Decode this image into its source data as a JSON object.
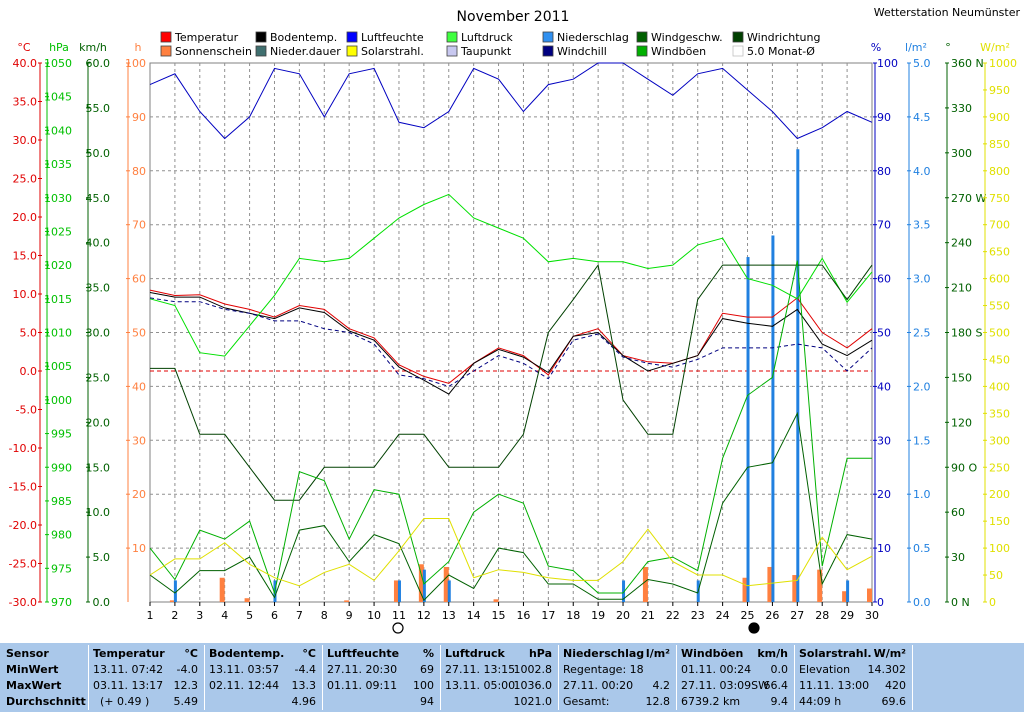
{
  "title": "November 2011",
  "station": "Wetterstation Neumünster",
  "chart_data": {
    "type": "line",
    "x": [
      1,
      2,
      3,
      4,
      5,
      6,
      7,
      8,
      9,
      10,
      11,
      12,
      13,
      14,
      15,
      16,
      17,
      18,
      19,
      20,
      21,
      22,
      23,
      24,
      25,
      26,
      27,
      28,
      29,
      30
    ],
    "xlabel": "",
    "grid": true,
    "axes": [
      {
        "id": "temp",
        "unit": "°C",
        "color": "#e00000",
        "range": [
          -30,
          40
        ],
        "ticks": [
          "40.0",
          "35.0",
          "30.0",
          "25.0",
          "20.0",
          "15.0",
          "10.0",
          "5.0",
          "0.0",
          "-5.0",
          "-10.0",
          "-15.0",
          "-20.0",
          "-25.0",
          "-30.0"
        ]
      },
      {
        "id": "pres",
        "unit": "hPa",
        "color": "#00c000",
        "range": [
          970,
          1050
        ],
        "ticks": [
          "1050",
          "1045",
          "1040",
          "1035",
          "1030",
          "1025",
          "1020",
          "1015",
          "1010",
          "1005",
          "1000",
          "995",
          "990",
          "985",
          "980",
          "975",
          "970"
        ]
      },
      {
        "id": "wind",
        "unit": "km/h",
        "color": "#006000",
        "range": [
          0,
          60
        ],
        "ticks": [
          "60.0",
          "55.0",
          "50.0",
          "45.0",
          "40.0",
          "35.0",
          "30.0",
          "25.0",
          "20.0",
          "15.0",
          "10.0",
          "5.0",
          "0.0"
        ]
      },
      {
        "id": "sun",
        "unit": "h",
        "color": "#ff8040",
        "range": [
          0,
          100
        ],
        "ticks": [
          "100",
          "90",
          "80",
          "70",
          "60",
          "50",
          "40",
          "30",
          "20",
          "10"
        ]
      },
      {
        "id": "hum",
        "unit": "%",
        "color": "#0000c0",
        "range": [
          0,
          100
        ],
        "ticks": [
          "100",
          "90",
          "80",
          "70",
          "60",
          "50",
          "40",
          "30",
          "20",
          "10",
          "0"
        ]
      },
      {
        "id": "rain",
        "unit": "l/m²",
        "color": "#2080e0",
        "range": [
          0,
          5
        ],
        "ticks": [
          "5.0",
          "4.5",
          "4.0",
          "3.5",
          "3.0",
          "2.5",
          "2.0",
          "1.5",
          "1.0",
          "0.5",
          "0.0"
        ]
      },
      {
        "id": "dir",
        "unit": "°",
        "color": "#006000",
        "range": [
          0,
          360
        ],
        "ticks": [
          "360 N",
          "330",
          "300",
          "270 W",
          "240",
          "210",
          "180 S",
          "150",
          "120",
          "90 O",
          "60",
          "30",
          "0 N"
        ]
      },
      {
        "id": "solar",
        "unit": "W/m²",
        "color": "#e0e000",
        "range": [
          0,
          1000
        ],
        "ticks": [
          "1000",
          "950",
          "900",
          "850",
          "800",
          "750",
          "700",
          "650",
          "600",
          "550",
          "500",
          "450",
          "400",
          "350",
          "300",
          "250",
          "200",
          "150",
          "100",
          "50",
          "0"
        ]
      }
    ],
    "legend": [
      {
        "label": "Temperatur",
        "color": "#ff0000"
      },
      {
        "label": "Bodentemp.",
        "color": "#000000"
      },
      {
        "label": "Luftfeuchte",
        "color": "#0000ff"
      },
      {
        "label": "Luftdruck",
        "color": "#40ff40"
      },
      {
        "label": "Niederschlag",
        "color": "#3090f0"
      },
      {
        "label": "Windgeschw.",
        "color": "#006000"
      },
      {
        "label": "Windrichtung",
        "color": "#004000"
      },
      {
        "label": "Sonnenschein",
        "color": "#ff8040"
      },
      {
        "label": "Nieder.dauer",
        "color": "#407070"
      },
      {
        "label": "Solarstrahl.",
        "color": "#ffff00"
      },
      {
        "label": "Taupunkt",
        "color": "#c8c8f0"
      },
      {
        "label": "Windchill",
        "color": "#000080"
      },
      {
        "label": "Windböen",
        "color": "#00b000"
      },
      {
        "label": "5.0 Monat-Ø",
        "color": "#c0c0c0"
      }
    ],
    "series": [
      {
        "name": "Temperatur",
        "axis": "temp",
        "color": "#e00000",
        "values": [
          10.5,
          9.8,
          9.9,
          8.7,
          8.0,
          7.0,
          8.5,
          8.0,
          5.5,
          4.3,
          0.8,
          -0.7,
          -1.6,
          1.0,
          3.0,
          2.0,
          -0.5,
          4.5,
          5.5,
          2.0,
          1.2,
          1.0,
          2.0,
          7.5,
          7.0,
          7.0,
          9.5,
          5.0,
          3.0,
          5.5
        ]
      },
      {
        "name": "Bodentemp.",
        "axis": "temp",
        "color": "#000000",
        "values": [
          10.2,
          9.6,
          9.6,
          8.2,
          7.5,
          6.8,
          8.2,
          7.6,
          5.2,
          4.0,
          0.5,
          -1.2,
          -3.0,
          1.0,
          2.8,
          1.8,
          -0.2,
          4.5,
          5.0,
          2.0,
          0.0,
          1.0,
          2.0,
          6.8,
          6.2,
          5.8,
          8.0,
          3.5,
          2.0,
          4.0
        ]
      },
      {
        "name": "Taupunkt",
        "axis": "temp",
        "color": "#000080",
        "dashed": true,
        "values": [
          9.5,
          9.0,
          9.0,
          8.0,
          7.5,
          6.5,
          6.5,
          5.5,
          5.0,
          3.5,
          -0.5,
          -1.0,
          -2.0,
          0.0,
          2.0,
          1.0,
          -1.0,
          4.0,
          4.8,
          1.8,
          1.0,
          0.5,
          1.5,
          3.0,
          3.0,
          3.0,
          3.5,
          3.0,
          0.0,
          3.0
        ]
      },
      {
        "name": "Luftfeuchte",
        "axis": "hum",
        "color": "#0000c0",
        "values": [
          96,
          98,
          91,
          86,
          90,
          99,
          98,
          90,
          98,
          99,
          89,
          88,
          91,
          99,
          97,
          91,
          96,
          97,
          100,
          100,
          97,
          94,
          98,
          99,
          95,
          91,
          86,
          88,
          91,
          89
        ]
      },
      {
        "name": "Luftdruck",
        "axis": "pres",
        "color": "#00e000",
        "values": [
          1015,
          1014,
          1007,
          1006.5,
          1011,
          1015.5,
          1021,
          1020.5,
          1021,
          1024,
          1027,
          1029,
          1030.5,
          1027,
          1025.5,
          1024,
          1020.5,
          1021,
          1020.5,
          1020.5,
          1019.5,
          1020,
          1023,
          1024,
          1018,
          1017,
          1015,
          1021,
          1014.5,
          1019
        ]
      },
      {
        "name": "Windrichtung",
        "axis": "dir",
        "color": "#004000",
        "values": [
          156,
          156,
          112,
          112,
          90,
          68,
          68,
          90,
          90,
          90,
          112,
          112,
          90,
          90,
          90,
          112,
          180,
          202,
          225,
          135,
          112,
          112,
          202,
          225,
          225,
          225,
          225,
          225,
          202,
          225
        ]
      },
      {
        "name": "Windgeschw.",
        "axis": "wind",
        "color": "#006000",
        "values": [
          3,
          1,
          3.5,
          3.5,
          5,
          0.5,
          8,
          8.5,
          4.5,
          7.5,
          6.5,
          0.2,
          3,
          1.5,
          6,
          5.5,
          2,
          2,
          0.3,
          0.3,
          2.5,
          2,
          1,
          11,
          15,
          15.5,
          21,
          2,
          7.5,
          7
        ]
      },
      {
        "name": "Windböen",
        "axis": "wind",
        "color": "#00b000",
        "values": [
          6,
          2.5,
          8,
          7,
          9,
          1,
          14.5,
          13.5,
          7,
          12.5,
          12,
          2,
          4.5,
          10,
          12,
          11,
          4,
          3.5,
          1,
          1,
          4.5,
          5,
          3.5,
          16,
          23,
          25,
          38,
          4,
          16,
          16
        ]
      },
      {
        "name": "Solarstrahl.",
        "axis": "solar",
        "color": "#e0e000",
        "values": [
          50,
          80,
          80,
          110,
          70,
          45,
          30,
          55,
          70,
          40,
          95,
          155,
          155,
          45,
          60,
          55,
          45,
          40,
          40,
          75,
          135,
          75,
          50,
          50,
          30,
          35,
          40,
          120,
          60,
          85
        ]
      },
      {
        "name": "Sonnenschein",
        "axis": "sun",
        "color": "#ff8040",
        "type": "bar",
        "values": [
          0,
          0.3,
          0,
          4.5,
          0.7,
          0,
          0,
          0,
          0.3,
          0,
          4,
          7,
          6.5,
          0,
          0.5,
          0,
          0,
          0,
          0,
          0,
          6.5,
          0,
          0,
          0,
          4.5,
          6.5,
          5,
          6,
          2,
          2.5
        ]
      },
      {
        "name": "Niederschlag",
        "axis": "rain",
        "color": "#2080e0",
        "type": "bar",
        "values": [
          0,
          0.2,
          0,
          0,
          0,
          0.2,
          0,
          0,
          0,
          0,
          0.2,
          0.3,
          0.2,
          0,
          0,
          0,
          0,
          0,
          0,
          0.2,
          0,
          0,
          0.2,
          0,
          3.2,
          3.4,
          4.2,
          0,
          0.2,
          0
        ]
      }
    ],
    "annotations": [
      "Vollmond am 11.",
      "Neumond am 25."
    ]
  },
  "stats": {
    "rows": [
      "Sensor",
      "MinWert",
      "MaxWert",
      "Durchschnitt"
    ],
    "temp": {
      "h1": "Temperatur",
      "h2": "°C",
      "min_t": "13.11.  07:42",
      "min": "-4.0",
      "max_t": "03.11.  13:17",
      "max": "12.3",
      "avg_t": "(+ 0.49 )",
      "avg": "5.49"
    },
    "soil": {
      "h1": "Bodentemp.",
      "h2": "°C",
      "min_t": "13.11.  03:57",
      "min": "-4.4",
      "max_t": "02.11.  12:44",
      "max": "13.3",
      "avg": "4.96"
    },
    "hum": {
      "h1": "Luftfeuchte",
      "h2": "%",
      "min_t": "27.11.  20:30",
      "min": "69",
      "max_t": "01.11.  09:11",
      "max": "100",
      "avg": "94"
    },
    "pres": {
      "h1": "Luftdruck",
      "h2": "hPa",
      "min_t": "27.11.  13:15",
      "min": "1002.8",
      "max_t": "13.11.  05:00",
      "max": "1036.0",
      "avg": "1021.0"
    },
    "rain": {
      "h1": "Niederschlag",
      "h2": "l/m²",
      "r1": "Regentage: 18",
      "r2_t": "27.11.  00:20",
      "r2": "4.2",
      "r3_t": "Gesamt:",
      "r3": "12.8"
    },
    "gust": {
      "h1": "Windböen",
      "h2": "km/h",
      "min_t": "01.11.  00:24",
      "min": "0.0",
      "max_t": "27.11.  03:09SW",
      "max": "66.4",
      "avg_t": "6739.2 km",
      "avg": "9.4"
    },
    "solar": {
      "h1": "Solarstrahl.",
      "h2": "W/m²",
      "r1_t": "Elevation",
      "r1": "14.302",
      "r2_t": "11.11.  13:00",
      "r2": "420",
      "r3_t": "44:09 h",
      "r3": "69.6"
    }
  }
}
